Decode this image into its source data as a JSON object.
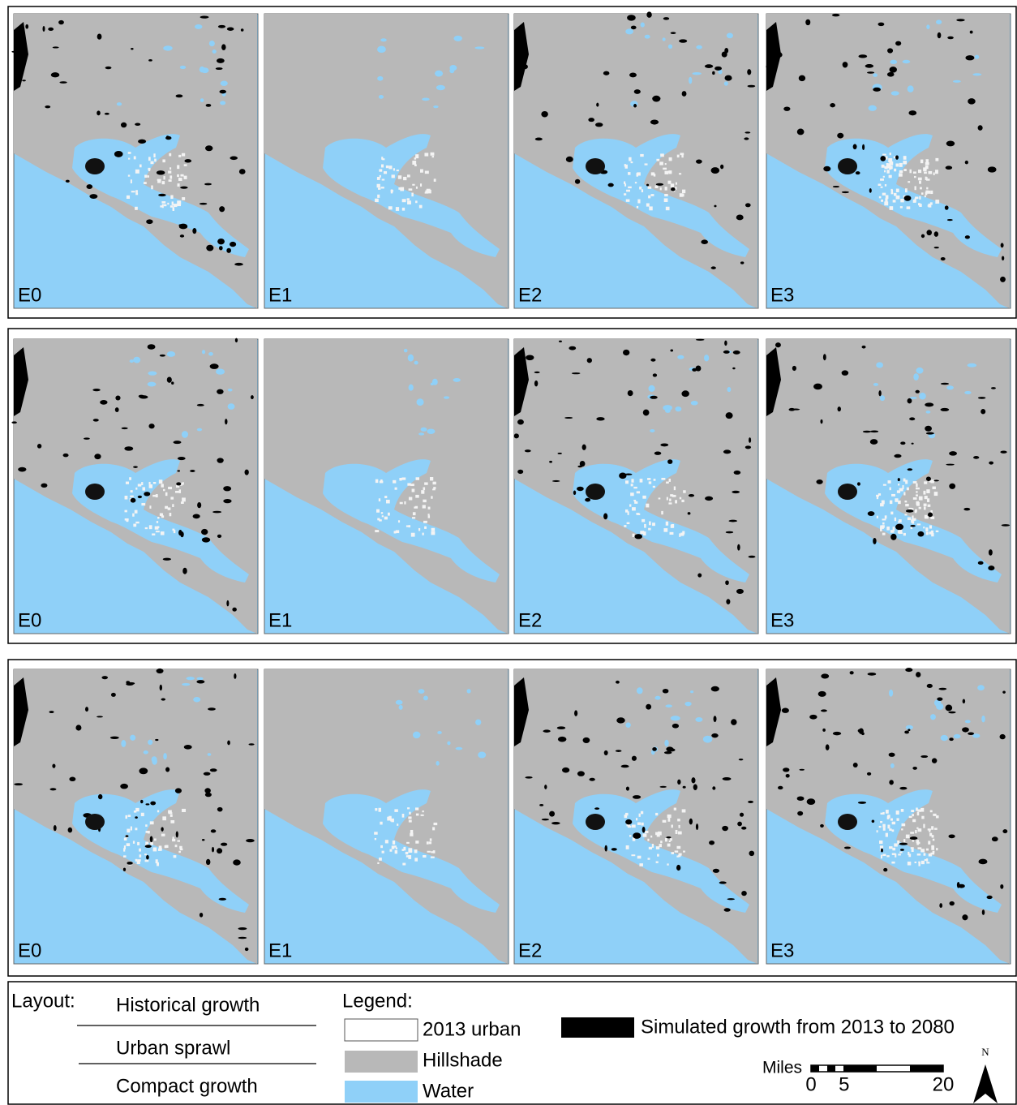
{
  "rows": [
    {
      "panels": [
        "E0",
        "E1",
        "E2",
        "E3"
      ]
    },
    {
      "panels": [
        "E0",
        "E1",
        "E2",
        "E3"
      ]
    },
    {
      "panels": [
        "E0",
        "E1",
        "E2",
        "E3"
      ]
    }
  ],
  "layout": {
    "title": "Layout:",
    "items": [
      "Historical growth",
      "Urban sprawl",
      "Compact growth"
    ]
  },
  "legend": {
    "title": "Legend:",
    "items": [
      "2013 urban",
      "Hillshade",
      "Water"
    ],
    "simulated": "Simulated growth from 2013 to 2080"
  },
  "scale_bar": {
    "unit": "Miles",
    "ticks": [
      0,
      5,
      20
    ]
  },
  "north": "N"
}
